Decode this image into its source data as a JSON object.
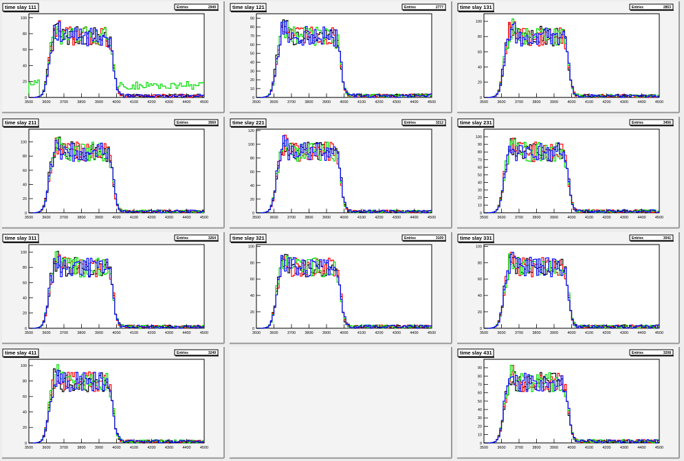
{
  "chart_data": [
    {
      "type": "histogram",
      "title": "time slay 111",
      "stats_label": "Entries",
      "entries": "2949",
      "xlim": [
        3500,
        4500
      ],
      "ylim": [
        0,
        105
      ],
      "yticks": [
        0,
        20,
        40,
        60,
        80,
        100
      ],
      "xticks": [
        3500,
        3600,
        3700,
        3800,
        3900,
        4000,
        4100,
        4200,
        4300,
        4400,
        4500
      ],
      "green_tail": true,
      "series_colors": [
        "#000000",
        "#ff0000",
        "#00dd00",
        "#0000ff"
      ]
    },
    {
      "type": "histogram",
      "title": "time slay 121",
      "stats_label": "Entries",
      "entries": "2777",
      "xlim": [
        3500,
        4500
      ],
      "ylim": [
        0,
        95
      ],
      "yticks": [
        0,
        10,
        20,
        30,
        40,
        50,
        60,
        70,
        80,
        90
      ],
      "xticks": [
        3500,
        3600,
        3700,
        3800,
        3900,
        4000,
        4100,
        4200,
        4300,
        4400,
        4500
      ],
      "green_tail": false,
      "series_colors": [
        "#000000",
        "#ff0000",
        "#00dd00",
        "#0000ff"
      ]
    },
    {
      "type": "histogram",
      "title": "time slay 131",
      "stats_label": "Entries",
      "entries": "2853",
      "xlim": [
        3500,
        4500
      ],
      "ylim": [
        0,
        110
      ],
      "yticks": [
        0,
        20,
        40,
        60,
        80,
        100
      ],
      "xticks": [
        3500,
        3600,
        3700,
        3800,
        3900,
        4000,
        4100,
        4200,
        4300,
        4400,
        4500
      ],
      "green_tail": false,
      "series_colors": [
        "#000000",
        "#ff0000",
        "#00dd00",
        "#0000ff"
      ]
    },
    {
      "type": "histogram",
      "title": "time slay 211",
      "stats_label": "Entries",
      "entries": "3569",
      "xlim": [
        3500,
        4500
      ],
      "ylim": [
        0,
        118
      ],
      "yticks": [
        0,
        20,
        40,
        60,
        80,
        100
      ],
      "xticks": [
        3500,
        3600,
        3700,
        3800,
        3900,
        4000,
        4100,
        4200,
        4300,
        4400,
        4500
      ],
      "green_tail": false,
      "series_colors": [
        "#000000",
        "#ff0000",
        "#00dd00",
        "#0000ff"
      ]
    },
    {
      "type": "histogram",
      "title": "time slay 221",
      "stats_label": "Entries",
      "entries": "3212",
      "xlim": [
        3500,
        4500
      ],
      "ylim": [
        0,
        122
      ],
      "yticks": [
        0,
        20,
        40,
        60,
        80,
        100,
        120
      ],
      "xticks": [
        3500,
        3600,
        3700,
        3800,
        3900,
        4000,
        4100,
        4200,
        4300,
        4400,
        4500
      ],
      "green_tail": false,
      "series_colors": [
        "#000000",
        "#ff0000",
        "#00dd00",
        "#0000ff"
      ]
    },
    {
      "type": "histogram",
      "title": "time slay 231",
      "stats_label": "Entries",
      "entries": "3456",
      "xlim": [
        3500,
        4500
      ],
      "ylim": [
        0,
        110
      ],
      "yticks": [
        0,
        10,
        20,
        30,
        40,
        50,
        60,
        70,
        80,
        90,
        100
      ],
      "xticks": [
        3500,
        3600,
        3700,
        3800,
        3900,
        4000,
        4100,
        4200,
        4300,
        4400,
        4500
      ],
      "green_tail": false,
      "series_colors": [
        "#000000",
        "#ff0000",
        "#00dd00",
        "#0000ff"
      ]
    },
    {
      "type": "histogram",
      "title": "time slay 311",
      "stats_label": "Entries",
      "entries": "3264",
      "xlim": [
        3500,
        4500
      ],
      "ylim": [
        0,
        110
      ],
      "yticks": [
        0,
        20,
        40,
        60,
        80,
        100
      ],
      "xticks": [
        3500,
        3600,
        3700,
        3800,
        3900,
        4000,
        4100,
        4200,
        4300,
        4400,
        4500
      ],
      "green_tail": false,
      "series_colors": [
        "#000000",
        "#ff0000",
        "#00dd00",
        "#0000ff"
      ]
    },
    {
      "type": "histogram",
      "title": "time slay 321",
      "stats_label": "Entries",
      "entries": "3109",
      "xlim": [
        3500,
        4500
      ],
      "ylim": [
        0,
        102
      ],
      "yticks": [
        0,
        20,
        40,
        60,
        80,
        100
      ],
      "xticks": [
        3500,
        3600,
        3700,
        3800,
        3900,
        4000,
        4100,
        4200,
        4300,
        4400,
        4500
      ],
      "green_tail": false,
      "series_colors": [
        "#000000",
        "#ff0000",
        "#00dd00",
        "#0000ff"
      ]
    },
    {
      "type": "histogram",
      "title": "time slay 331",
      "stats_label": "Entries",
      "entries": "3041",
      "xlim": [
        3500,
        4500
      ],
      "ylim": [
        0,
        102
      ],
      "yticks": [
        0,
        20,
        40,
        60,
        80,
        100
      ],
      "xticks": [
        3500,
        3600,
        3700,
        3800,
        3900,
        4000,
        4100,
        4200,
        4300,
        4400,
        4500
      ],
      "green_tail": false,
      "series_colors": [
        "#000000",
        "#ff0000",
        "#00dd00",
        "#0000ff"
      ]
    },
    {
      "type": "histogram",
      "title": "time slay 411",
      "stats_label": "Entries",
      "entries": "3249",
      "xlim": [
        3500,
        4500
      ],
      "ylim": [
        0,
        108
      ],
      "yticks": [
        0,
        20,
        40,
        60,
        80,
        100
      ],
      "xticks": [
        3500,
        3600,
        3700,
        3800,
        3900,
        4000,
        4100,
        4200,
        4300,
        4400,
        4500
      ],
      "green_tail": false,
      "series_colors": [
        "#000000",
        "#ff0000",
        "#00dd00",
        "#0000ff"
      ]
    },
    null,
    {
      "type": "histogram",
      "title": "time slay 431",
      "stats_label": "Entries",
      "entries": "3208",
      "xlim": [
        3500,
        4500
      ],
      "ylim": [
        0,
        100
      ],
      "yticks": [
        0,
        10,
        20,
        30,
        40,
        50,
        60,
        70,
        80,
        90
      ],
      "xticks": [
        3500,
        3600,
        3700,
        3800,
        3900,
        4000,
        4100,
        4200,
        4300,
        4400,
        4500
      ],
      "green_tail": false,
      "series_colors": [
        "#000000",
        "#ff0000",
        "#00dd00",
        "#0000ff"
      ]
    }
  ]
}
